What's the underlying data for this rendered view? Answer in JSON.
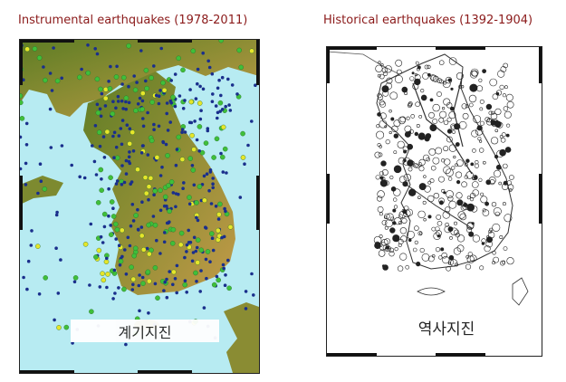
{
  "panels": [
    {
      "title": "Instrumental earthquakes  (1978-2011)",
      "caption": "계기지진",
      "colors": {
        "sea": "#b7ebf2",
        "land_low": "#6f8f2a",
        "land_high": "#b98f3a",
        "dot_blue": "#1a2f8c",
        "dot_green": "#3fbf3a",
        "dot_yellow": "#e6e62a"
      }
    },
    {
      "title": "Historical earthquakes  (1392-1904)",
      "caption": "역사지진",
      "colors": {
        "background": "#ffffff",
        "outline": "#333333",
        "circle": "#222222"
      }
    }
  ]
}
